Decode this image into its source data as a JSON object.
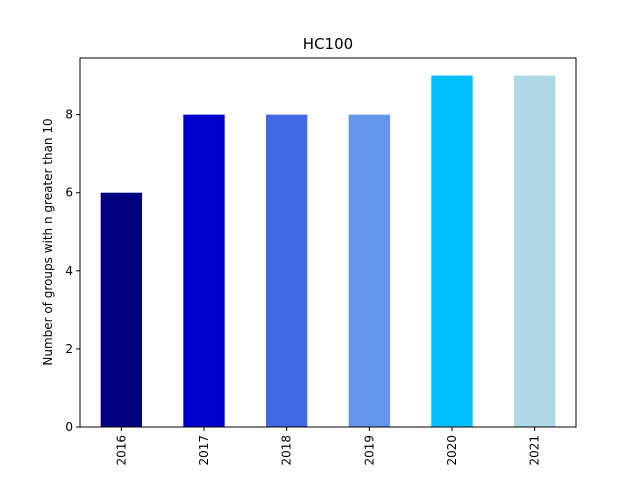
{
  "chart_data": {
    "type": "bar",
    "title": "HC100",
    "xlabel": "",
    "ylabel": "Number of groups with n greater than 10",
    "categories": [
      "2016",
      "2017",
      "2018",
      "2019",
      "2020",
      "2021"
    ],
    "values": [
      6,
      8,
      8,
      8,
      9,
      9
    ],
    "colors": [
      "#000080",
      "#0000CD",
      "#4169E1",
      "#6495ED",
      "#00BFFF",
      "#ADD8E6"
    ],
    "ylim": [
      0,
      9.45
    ],
    "yticks": [
      0,
      2,
      4,
      6,
      8
    ],
    "grid": false,
    "legend": "none"
  }
}
